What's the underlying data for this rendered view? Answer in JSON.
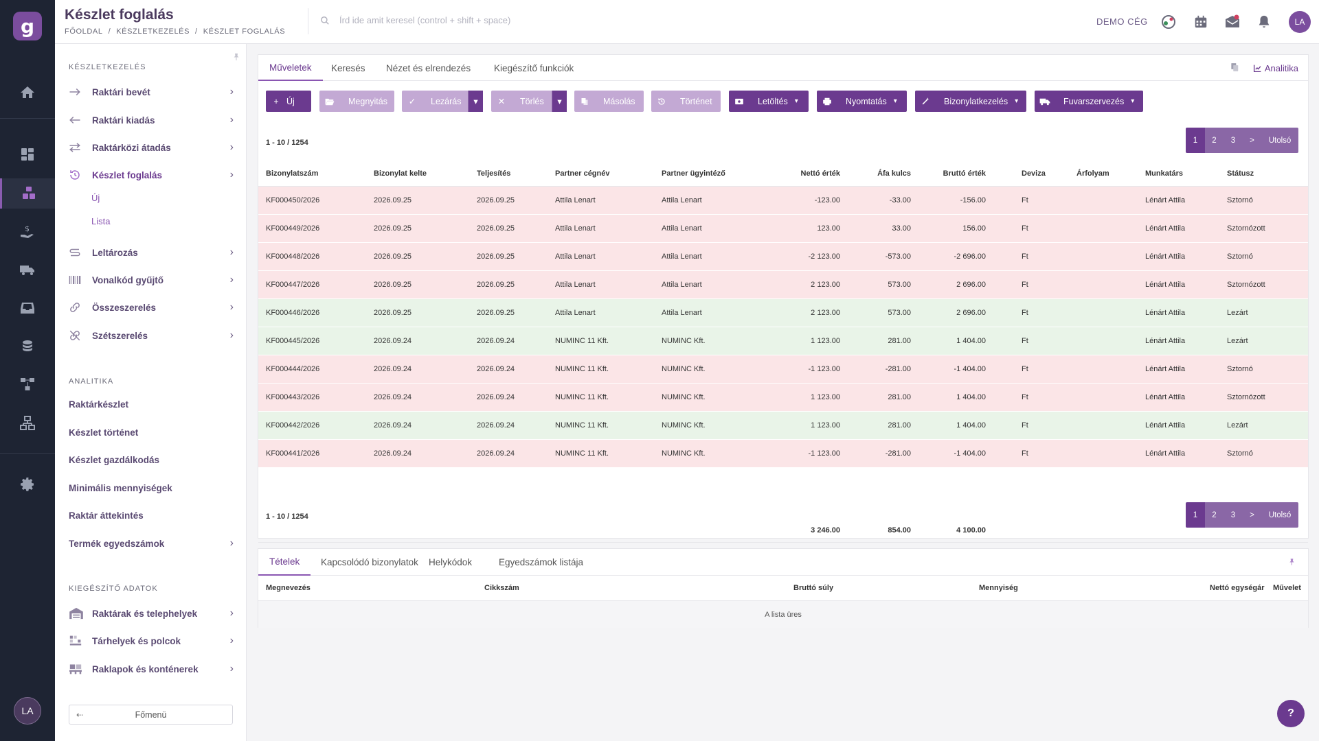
{
  "header": {
    "title": "Készlet foglalás",
    "breadcrumb": [
      "FŐOLDAL",
      "/",
      "KÉSZLETKEZELÉS",
      "/",
      "KÉSZLET FOGLALÁS"
    ],
    "search_placeholder": "Írd ide amit keresel (control + shift + space)",
    "company": "DEMO CÉG",
    "avatar": "LA"
  },
  "rail": {
    "logo": "g",
    "avatar": "LA"
  },
  "sidebar": {
    "section1": "KÉSZLETKEZELÉS",
    "items": [
      {
        "label": "Raktári bevét",
        "icon": "arrow-right-icon"
      },
      {
        "label": "Raktári kiadás",
        "icon": "arrow-left-icon"
      },
      {
        "label": "Raktárközi átadás",
        "icon": "swap-icon"
      },
      {
        "label": "Készlet foglalás",
        "icon": "reserve-icon"
      },
      {
        "label": "Leltározás",
        "icon": "inventory-icon"
      },
      {
        "label": "Vonalkód gyűjtő",
        "icon": "barcode-icon"
      },
      {
        "label": "Összeszerelés",
        "icon": "assembly-icon"
      },
      {
        "label": "Szétszerelés",
        "icon": "disassembly-icon"
      }
    ],
    "subitems": [
      "Új",
      "Lista"
    ],
    "section2": "ANALITIKA",
    "analytics": [
      "Raktárkészlet",
      "Készlet történet",
      "Készlet gazdálkodás",
      "Minimális mennyiségek",
      "Raktár áttekintés",
      "Termék egyedszámok"
    ],
    "section3": "KIEGÉSZÍTŐ ADATOK",
    "extras": [
      {
        "label": "Raktárak és telephelyek",
        "icon": "warehouse-icon"
      },
      {
        "label": "Tárhelyek és polcok",
        "icon": "shelf-icon"
      },
      {
        "label": "Raklapok és konténerek",
        "icon": "pallet-icon"
      }
    ],
    "back_button": "Főmenü"
  },
  "main": {
    "tabs": [
      "Műveletek",
      "Keresés",
      "Nézet és elrendezés",
      "Kiegészítő funkciók"
    ],
    "analytics_link": "Analitika",
    "toolbar": {
      "new": "Új",
      "open": "Megnyitás",
      "close": "Lezárás",
      "delete": "Törlés",
      "copy": "Másolás",
      "history": "Történet",
      "download": "Letöltés",
      "print": "Nyomtatás",
      "docs": "Bizonylatkezelés",
      "shipping": "Fuvarszervezés"
    },
    "range": "1 - 10 / 1254",
    "pager": [
      "1",
      "2",
      "3",
      ">",
      "Utolsó"
    ],
    "columns": [
      "Bizonylatszám",
      "Bizonylat kelte",
      "Teljesítés",
      "Partner cégnév",
      "Partner ügyintéző",
      "Nettó érték",
      "Áfa kulcs",
      "Bruttó érték",
      "Deviza",
      "Árfolyam",
      "Munkatárs",
      "Státusz"
    ],
    "rows": [
      {
        "status_color": "red",
        "cells": [
          "KF000450/2026",
          "2026.09.25",
          "2026.09.25",
          "Attila Lenart",
          "Attila Lenart",
          "-123.00",
          "-33.00",
          "-156.00",
          "Ft",
          "",
          "Lénárt Attila",
          "Sztornó"
        ]
      },
      {
        "status_color": "red",
        "cells": [
          "KF000449/2026",
          "2026.09.25",
          "2026.09.25",
          "Attila Lenart",
          "Attila Lenart",
          "123.00",
          "33.00",
          "156.00",
          "Ft",
          "",
          "Lénárt Attila",
          "Sztornózott"
        ]
      },
      {
        "status_color": "red",
        "cells": [
          "KF000448/2026",
          "2026.09.25",
          "2026.09.25",
          "Attila Lenart",
          "Attila Lenart",
          "-2 123.00",
          "-573.00",
          "-2 696.00",
          "Ft",
          "",
          "Lénárt Attila",
          "Sztornó"
        ]
      },
      {
        "status_color": "red",
        "cells": [
          "KF000447/2026",
          "2026.09.25",
          "2026.09.25",
          "Attila Lenart",
          "Attila Lenart",
          "2 123.00",
          "573.00",
          "2 696.00",
          "Ft",
          "",
          "Lénárt Attila",
          "Sztornózott"
        ]
      },
      {
        "status_color": "green",
        "cells": [
          "KF000446/2026",
          "2026.09.25",
          "2026.09.25",
          "Attila Lenart",
          "Attila Lenart",
          "2 123.00",
          "573.00",
          "2 696.00",
          "Ft",
          "",
          "Lénárt Attila",
          "Lezárt"
        ]
      },
      {
        "status_color": "green",
        "cells": [
          "KF000445/2026",
          "2026.09.24",
          "2026.09.24",
          "NUMINC 11 Kft.",
          "NUMINC Kft.",
          "1 123.00",
          "281.00",
          "1 404.00",
          "Ft",
          "",
          "Lénárt Attila",
          "Lezárt"
        ]
      },
      {
        "status_color": "red",
        "cells": [
          "KF000444/2026",
          "2026.09.24",
          "2026.09.24",
          "NUMINC 11 Kft.",
          "NUMINC Kft.",
          "-1 123.00",
          "-281.00",
          "-1 404.00",
          "Ft",
          "",
          "Lénárt Attila",
          "Sztornó"
        ]
      },
      {
        "status_color": "red",
        "cells": [
          "KF000443/2026",
          "2026.09.24",
          "2026.09.24",
          "NUMINC 11 Kft.",
          "NUMINC Kft.",
          "1 123.00",
          "281.00",
          "1 404.00",
          "Ft",
          "",
          "Lénárt Attila",
          "Sztornózott"
        ]
      },
      {
        "status_color": "green",
        "cells": [
          "KF000442/2026",
          "2026.09.24",
          "2026.09.24",
          "NUMINC 11 Kft.",
          "NUMINC Kft.",
          "1 123.00",
          "281.00",
          "1 404.00",
          "Ft",
          "",
          "Lénárt Attila",
          "Lezárt"
        ]
      },
      {
        "status_color": "red",
        "cells": [
          "KF000441/2026",
          "2026.09.24",
          "2026.09.24",
          "NUMINC 11 Kft.",
          "NUMINC Kft.",
          "-1 123.00",
          "-281.00",
          "-1 404.00",
          "Ft",
          "",
          "Lénárt Attila",
          "Sztornó"
        ]
      }
    ],
    "totals": {
      "net": "3 246.00",
      "vat": "854.00",
      "gross": "4 100.00"
    }
  },
  "detail": {
    "tabs": [
      "Tételek",
      "Kapcsolódó bizonylatok",
      "Helykódok",
      "Egyedszámok listája"
    ],
    "columns": [
      "Megnevezés",
      "Cikkszám",
      "Bruttó súly",
      "Mennyiség",
      "Nettó egységár",
      "Művelet"
    ],
    "empty": "A lista üres"
  },
  "help": "?",
  "colors": {
    "accent": "#6b3a8f",
    "red_row": "#fbe5e7",
    "green_row": "#e9f4e8",
    "rail": "#1e2433"
  }
}
